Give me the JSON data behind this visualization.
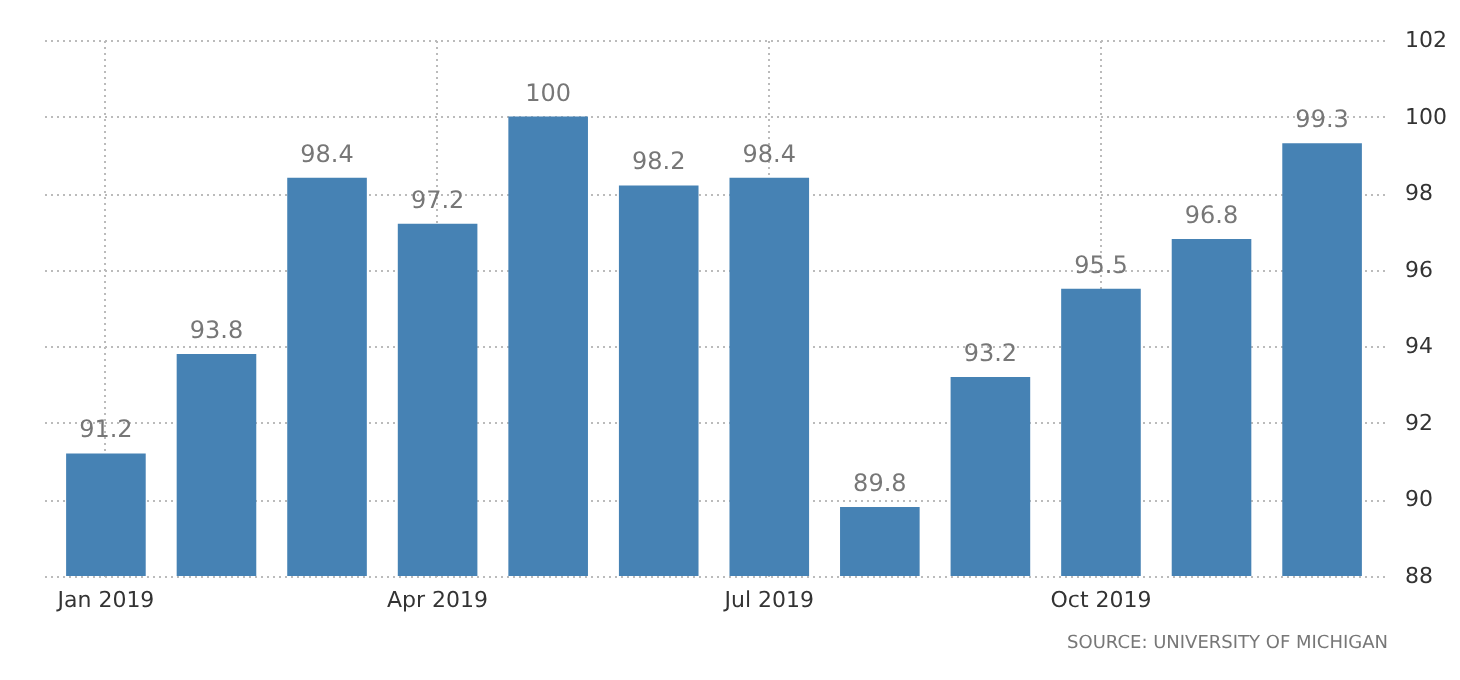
{
  "chart_data": {
    "type": "bar",
    "categories": [
      "Jan 2019",
      null,
      null,
      "Apr 2019",
      null,
      null,
      "Jul 2019",
      null,
      null,
      "Oct 2019",
      null,
      null
    ],
    "values": [
      91.2,
      93.8,
      98.4,
      97.2,
      100,
      98.2,
      98.4,
      89.8,
      93.2,
      95.5,
      96.8,
      99.3
    ],
    "color": "#4682b4",
    "ylim": [
      88,
      102
    ],
    "yticks": [
      88,
      90,
      92,
      94,
      96,
      98,
      100,
      102
    ],
    "grid": true,
    "data_labels": true,
    "annotations": [
      "SOURCE: UNIVERSITY OF MICHIGAN"
    ]
  }
}
